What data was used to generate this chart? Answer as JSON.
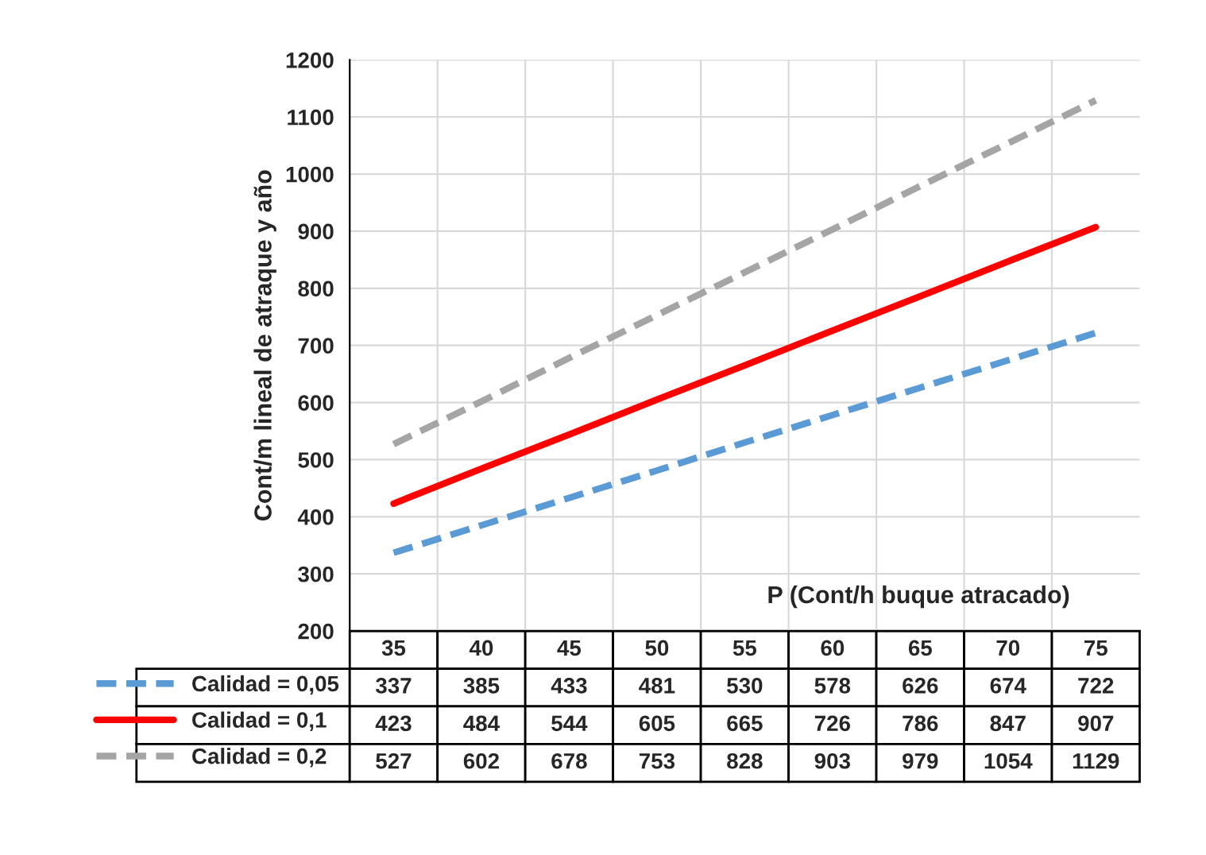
{
  "chart_data": {
    "type": "line",
    "xlabel": "P (Cont/h buque atracado)",
    "ylabel": "Cont/m lineal de atraque y año",
    "categories": [
      "35",
      "40",
      "45",
      "50",
      "55",
      "60",
      "65",
      "70",
      "75"
    ],
    "series": [
      {
        "name": "Calidad = 0,05",
        "color": "#5b9bd5",
        "line_style": "dashed",
        "values": [
          337,
          385,
          433,
          481,
          530,
          578,
          626,
          674,
          722
        ]
      },
      {
        "name": "Calidad = 0,1",
        "color": "#ff0000",
        "line_style": "solid",
        "values": [
          423,
          484,
          544,
          605,
          665,
          726,
          786,
          847,
          907
        ]
      },
      {
        "name": "Calidad = 0,2",
        "color": "#a5a5a5",
        "line_style": "dashed",
        "values": [
          527,
          602,
          678,
          753,
          828,
          903,
          979,
          1054,
          1129
        ]
      }
    ],
    "ylim": [
      200,
      1200
    ],
    "yticks": [
      200,
      300,
      400,
      500,
      600,
      700,
      800,
      900,
      1000,
      1100,
      1200
    ],
    "grid": true,
    "marker": "none",
    "data_labels": true,
    "legend": "bottom"
  }
}
